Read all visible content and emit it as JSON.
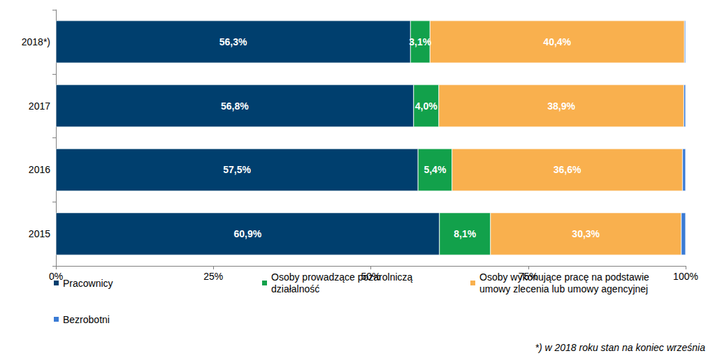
{
  "chart_data": {
    "type": "bar",
    "orientation": "horizontal",
    "stacked": true,
    "grid": false,
    "legend": "bottom",
    "annotation": "*) w 2018 roku stan na koniec września",
    "categories": [
      "2015",
      "2016",
      "2017",
      "2018*)"
    ],
    "xlim": [
      0,
      100
    ],
    "xticks": [
      {
        "value": 0,
        "label": "0%"
      },
      {
        "value": 25,
        "label": "25%"
      },
      {
        "value": 50,
        "label": "50%"
      },
      {
        "value": 75,
        "label": "75%"
      },
      {
        "value": 100,
        "label": "100%"
      }
    ],
    "series": [
      {
        "name": "Pracownicy",
        "color": "#003f6e",
        "data_labels": true,
        "values": [
          60.9,
          57.5,
          56.8,
          56.3
        ],
        "value_labels": [
          "60,9%",
          "57,5%",
          "56,8%",
          "56,3%"
        ]
      },
      {
        "name": "Osoby prowadzące pozarolniczą działalność",
        "color": "#12a14b",
        "data_labels": true,
        "values": [
          8.1,
          5.4,
          4.0,
          3.1
        ],
        "value_labels": [
          "8,1%",
          "5,4%",
          "4,0%",
          "3,1%"
        ]
      },
      {
        "name": "Osoby wykonujące pracę na podstawie umowy zlecenia lub umowy agencyjnej",
        "color": "#f9b04e",
        "data_labels": true,
        "values": [
          30.3,
          36.6,
          38.9,
          40.4
        ],
        "value_labels": [
          "30,3%",
          "36,6%",
          "38,9%",
          "40,4%"
        ]
      },
      {
        "name": "Bezrobotni",
        "color": "#3a7bd5",
        "data_labels": false,
        "values": [
          0.7,
          0.5,
          0.3,
          0.2
        ]
      }
    ]
  }
}
